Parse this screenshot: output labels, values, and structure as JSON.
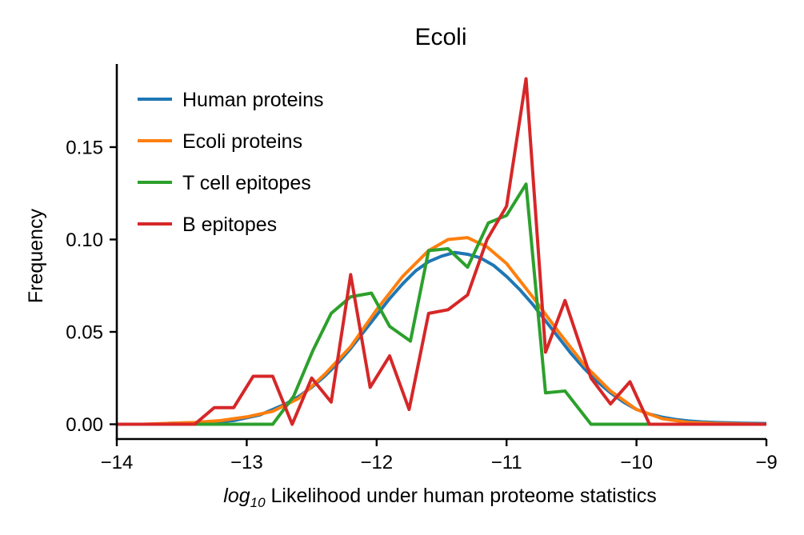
{
  "chart_data": {
    "type": "line",
    "title": "Ecoli",
    "xlabel_math": "log",
    "xlabel_sub": "10",
    "xlabel_rest": " Likelihood under human proteome statistics",
    "ylabel": "Frequency",
    "xlim": [
      -14,
      -9
    ],
    "ylim": [
      -0.008,
      0.195
    ],
    "xticks": [
      -14,
      -13,
      -12,
      -11,
      -10,
      -9
    ],
    "xtick_labels": [
      "−14",
      "−13",
      "−12",
      "−11",
      "−10",
      "−9"
    ],
    "yticks": [
      0.0,
      0.05,
      0.1,
      0.15
    ],
    "ytick_labels": [
      "0.00",
      "0.05",
      "0.10",
      "0.15"
    ],
    "grid": false,
    "legend_position": "top-left",
    "series": [
      {
        "name": "Human proteins",
        "color": "#1f77b4",
        "x": [
          -14.0,
          -13.9,
          -13.8,
          -13.7,
          -13.6,
          -13.5,
          -13.4,
          -13.3,
          -13.2,
          -13.1,
          -13.0,
          -12.9,
          -12.8,
          -12.7,
          -12.6,
          -12.5,
          -12.4,
          -12.3,
          -12.2,
          -12.1,
          -12.0,
          -11.9,
          -11.8,
          -11.7,
          -11.6,
          -11.5,
          -11.4,
          -11.3,
          -11.2,
          -11.1,
          -11.0,
          -10.9,
          -10.8,
          -10.7,
          -10.6,
          -10.5,
          -10.4,
          -10.3,
          -10.2,
          -10.1,
          -10.0,
          -9.9,
          -9.8,
          -9.7,
          -9.6,
          -9.5,
          -9.4,
          -9.3,
          -9.2,
          -9.1,
          -9.0
        ],
        "y": [
          0.0,
          0.0,
          0.0,
          0.0,
          0.0005,
          0.0007,
          0.0008,
          0.001,
          0.0015,
          0.002,
          0.0035,
          0.005,
          0.008,
          0.011,
          0.015,
          0.02,
          0.026,
          0.033,
          0.041,
          0.05,
          0.059,
          0.068,
          0.076,
          0.083,
          0.088,
          0.091,
          0.093,
          0.092,
          0.09,
          0.086,
          0.08,
          0.073,
          0.065,
          0.056,
          0.047,
          0.038,
          0.03,
          0.023,
          0.017,
          0.012,
          0.008,
          0.0055,
          0.0038,
          0.0026,
          0.0018,
          0.0013,
          0.001,
          0.0008,
          0.0006,
          0.0005,
          0.0004
        ]
      },
      {
        "name": "Ecoli proteins",
        "color": "#ff7f0e",
        "x": [
          -14.0,
          -13.8,
          -13.6,
          -13.4,
          -13.2,
          -13.0,
          -12.8,
          -12.6,
          -12.4,
          -12.2,
          -12.0,
          -11.8,
          -11.6,
          -11.45,
          -11.3,
          -11.15,
          -11.0,
          -10.8,
          -10.6,
          -10.4,
          -10.2,
          -10.0,
          -9.8,
          -9.6,
          -9.4,
          -9.2,
          -9.0
        ],
        "y": [
          0.0,
          0.0,
          0.0005,
          0.001,
          0.002,
          0.004,
          0.007,
          0.014,
          0.027,
          0.042,
          0.062,
          0.08,
          0.094,
          0.1,
          0.101,
          0.096,
          0.087,
          0.069,
          0.05,
          0.032,
          0.018,
          0.008,
          0.003,
          0.001,
          0.0005,
          0.0002,
          0.0
        ]
      },
      {
        "name": "T cell epitopes",
        "color": "#2ca02c",
        "x": [
          -14.0,
          -13.5,
          -13.0,
          -12.8,
          -12.64,
          -12.49,
          -12.35,
          -12.2,
          -12.04,
          -11.9,
          -11.74,
          -11.6,
          -11.45,
          -11.3,
          -11.14,
          -11.0,
          -10.85,
          -10.7,
          -10.55,
          -10.35,
          -10.0,
          -9.5,
          -9.0
        ],
        "y": [
          0.0,
          0.0,
          0.0,
          0.0,
          0.015,
          0.04,
          0.06,
          0.069,
          0.071,
          0.053,
          0.045,
          0.094,
          0.095,
          0.085,
          0.109,
          0.113,
          0.13,
          0.017,
          0.018,
          0.0,
          0.0,
          0.0,
          0.0
        ]
      },
      {
        "name": "B epitopes",
        "color": "#d62728",
        "x": [
          -14.0,
          -13.8,
          -13.6,
          -13.4,
          -13.25,
          -13.1,
          -12.95,
          -12.8,
          -12.65,
          -12.5,
          -12.35,
          -12.2,
          -12.05,
          -11.9,
          -11.75,
          -11.6,
          -11.45,
          -11.3,
          -11.15,
          -11.0,
          -10.85,
          -10.7,
          -10.55,
          -10.35,
          -10.2,
          -10.05,
          -9.9,
          -9.6,
          -9.3,
          -9.0
        ],
        "y": [
          0.0,
          0.0,
          0.0,
          0.0,
          0.009,
          0.009,
          0.026,
          0.026,
          0.0,
          0.025,
          0.012,
          0.081,
          0.02,
          0.037,
          0.008,
          0.06,
          0.062,
          0.07,
          0.1,
          0.118,
          0.187,
          0.039,
          0.067,
          0.025,
          0.011,
          0.023,
          0.0,
          0.0,
          0.0,
          0.0
        ]
      }
    ]
  }
}
